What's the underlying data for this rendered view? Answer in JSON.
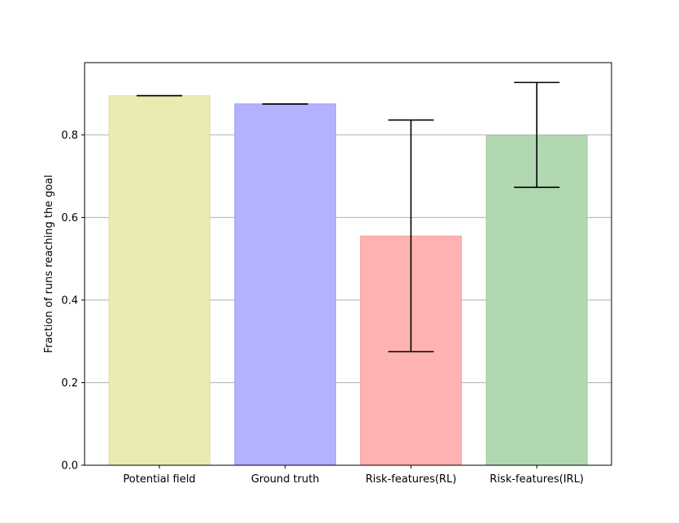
{
  "chart_data": {
    "type": "bar",
    "title": "",
    "xlabel": "",
    "ylabel": "Fraction of runs reaching the goal",
    "categories": [
      "Potential field",
      "Ground truth",
      "Risk-features(RL)",
      "Risk-features(IRL)"
    ],
    "values": [
      0.895,
      0.875,
      0.555,
      0.798
    ],
    "error_low": [
      0.895,
      0.875,
      0.275,
      0.673
    ],
    "error_high": [
      0.895,
      0.875,
      0.836,
      0.927
    ],
    "colors": [
      "#eaeab2",
      "#b2b2ff",
      "#ffb2b2",
      "#b2d8b2"
    ],
    "edge_colors": [
      "#e0e096",
      "#9a9aff",
      "#ff9a9a",
      "#9acc9a"
    ],
    "ylim": [
      0,
      0.975
    ],
    "yticks": [
      "0.0",
      "0.2",
      "0.4",
      "0.6",
      "0.8"
    ],
    "grid": "y",
    "legend": "none"
  }
}
